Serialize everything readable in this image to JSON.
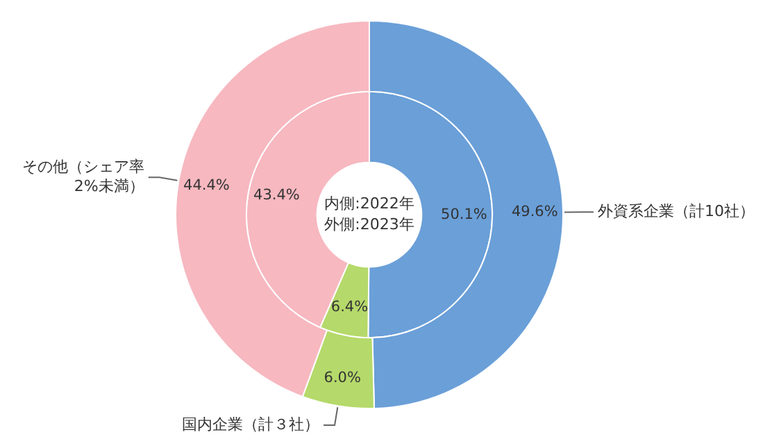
{
  "chart_data": {
    "type": "donut",
    "categories": [
      "外資系企業（計10社）",
      "国内企業（計３社）",
      "その他（シェア率2%未満）"
    ],
    "colors": [
      "#6a9fd8",
      "#b5d96a",
      "#f7b8c0"
    ],
    "series": [
      {
        "values": [
          49.6,
          6.0,
          44.4
        ],
        "value_labels": [
          "49.6%",
          "6.0%",
          "44.4%"
        ]
      },
      {
        "values": [
          50.1,
          6.4,
          43.4
        ],
        "value_labels": [
          "50.1%",
          "6.4%",
          "43.4%"
        ]
      }
    ],
    "legend": false,
    "annotations": [
      "内側:2022年",
      "外側:2023年"
    ]
  }
}
